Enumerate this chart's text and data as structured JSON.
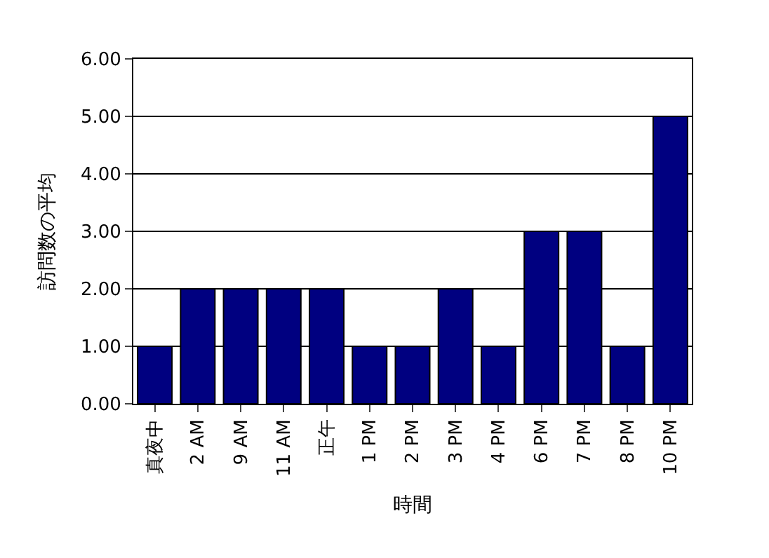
{
  "chart_data": {
    "type": "bar",
    "xlabel": "時間",
    "ylabel": "訪問数の平均",
    "categories": [
      "真夜中",
      "2 AM",
      "9 AM",
      "11 AM",
      "正午",
      "1 PM",
      "2 PM",
      "3 PM",
      "4 PM",
      "6 PM",
      "7 PM",
      "8 PM",
      "10 PM"
    ],
    "values": [
      1,
      2,
      2,
      2,
      2,
      1,
      1,
      2,
      1,
      3,
      3,
      1,
      5
    ],
    "color": "#000080",
    "ylim": [
      0,
      6
    ],
    "yticks": [
      {
        "value": 0,
        "label": "0.00"
      },
      {
        "value": 1,
        "label": "1.00"
      },
      {
        "value": 2,
        "label": "2.00"
      },
      {
        "value": 3,
        "label": "3.00"
      },
      {
        "value": 4,
        "label": "4.00"
      },
      {
        "value": 5,
        "label": "5.00"
      },
      {
        "value": 6,
        "label": "6.00"
      }
    ],
    "grid": "y"
  }
}
